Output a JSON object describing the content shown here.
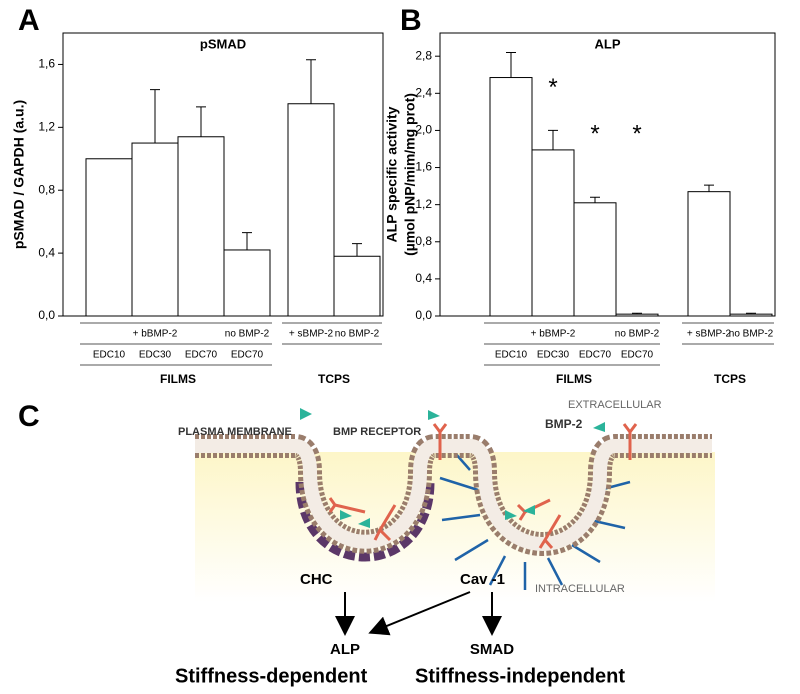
{
  "panels": [
    "A",
    "B",
    "C"
  ],
  "chart_data": [
    {
      "type": "bar",
      "title": "pSMAD",
      "y_label": [
        "pSMAD / GAPDH (a.u.)"
      ],
      "ylim": [
        0,
        1.8
      ],
      "yticks": [
        {
          "value": 0,
          "label": "0,0"
        },
        {
          "value": 0.4,
          "label": "0,4"
        },
        {
          "value": 0.8,
          "label": "0,8"
        },
        {
          "value": 1.2,
          "label": "1,2"
        },
        {
          "value": 1.6,
          "label": "1,6"
        }
      ],
      "color": "#ffffff",
      "edge_color": "#000000",
      "groups": [
        {
          "label": "FILMS",
          "subgroups": [
            {
              "label": "+ bBMP-2",
              "categories": [
                "EDC10",
                "EDC30",
                "EDC70"
              ],
              "values": [
                1.0,
                1.1,
                1.14
              ],
              "errors": [
                null,
                0.34,
                0.19
              ]
            },
            {
              "label": "no BMP-2",
              "categories": [
                "EDC70"
              ],
              "values": [
                0.42
              ],
              "errors": [
                0.11
              ]
            }
          ]
        },
        {
          "label": "TCPS",
          "subgroups": [
            {
              "label": "+ sBMP-2",
              "values": [
                1.35
              ],
              "errors": [
                0.28
              ]
            },
            {
              "label": "no BMP-2",
              "values": [
                0.38
              ],
              "errors": [
                0.08
              ]
            }
          ]
        }
      ]
    },
    {
      "type": "bar",
      "title": "ALP",
      "y_label": [
        "ALP specific activity",
        "(µmol pNP/mim/mg prot)"
      ],
      "ylim": [
        0,
        3.05
      ],
      "yticks": [
        {
          "value": 0,
          "label": "0,0"
        },
        {
          "value": 0.4,
          "label": "0,4"
        },
        {
          "value": 0.8,
          "label": "0,8"
        },
        {
          "value": 1.2,
          "label": "1,2"
        },
        {
          "value": 1.6,
          "label": "1,6"
        },
        {
          "value": 2.0,
          "label": "2,0"
        },
        {
          "value": 2.4,
          "label": "2,4"
        },
        {
          "value": 2.8,
          "label": "2,8"
        }
      ],
      "color": "#ffffff",
      "edge_color": "#000000",
      "groups": [
        {
          "label": "FILMS",
          "subgroups": [
            {
              "label": "+ bBMP-2",
              "categories": [
                "EDC10",
                "EDC30",
                "EDC70"
              ],
              "values": [
                2.57,
                1.79,
                1.22
              ],
              "errors": [
                0.27,
                0.21,
                0.06
              ],
              "significance": [
                null,
                "*",
                "*"
              ]
            },
            {
              "label": "no BMP-2",
              "categories": [
                "EDC70"
              ],
              "values": [
                0.02
              ],
              "errors": [
                0.01
              ],
              "significance": [
                "*"
              ]
            }
          ]
        },
        {
          "label": "TCPS",
          "subgroups": [
            {
              "label": "+ sBMP-2",
              "values": [
                1.34
              ],
              "errors": [
                0.07
              ]
            },
            {
              "label": "no BMP-2",
              "values": [
                0.02
              ],
              "errors": [
                0.01
              ]
            }
          ]
        }
      ]
    }
  ],
  "diagram": {
    "plasma_membrane": "PLASMA MEMBRANE",
    "bmp_receptor": "BMP RECEPTOR",
    "extracellular": "EXTRACELLULAR",
    "bmp2": "BMP-2",
    "chc": "CHC",
    "cav1": "Cav -1",
    "intracellular": "INTRACELLULAR",
    "alp": "ALP",
    "smad": "SMAD",
    "stiffness_dependent": "Stiffness-dependent",
    "stiffness_independent": "Stiffness-independent"
  }
}
